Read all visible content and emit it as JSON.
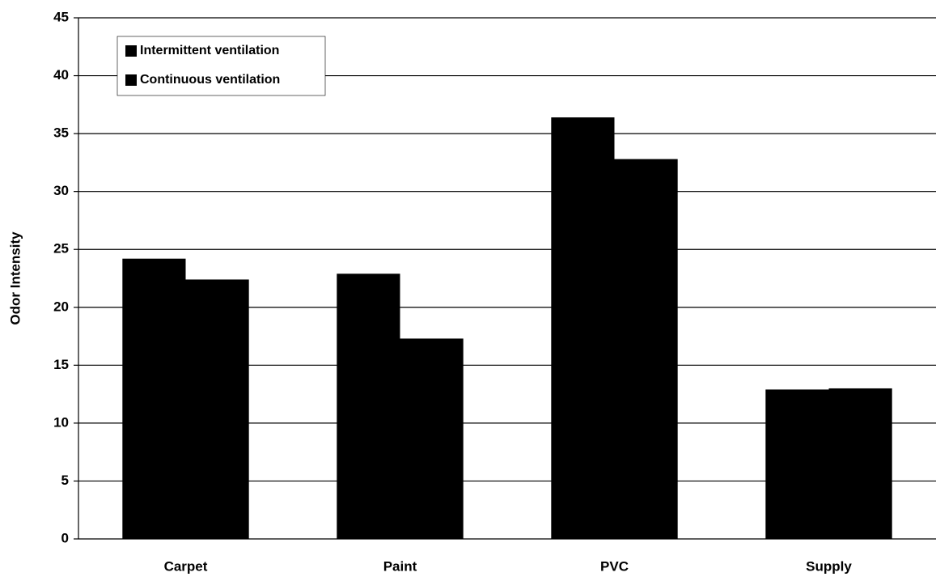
{
  "chart_data": {
    "type": "bar",
    "y_label": "Odor Intensity",
    "categories": [
      "Carpet",
      "Paint",
      "PVC",
      "Supply"
    ],
    "series": [
      {
        "name": "Intermittent ventilation",
        "color": "#000000",
        "values": [
          24.2,
          22.9,
          36.4,
          12.9
        ]
      },
      {
        "name": "Continuous ventilation",
        "color": "#000000",
        "values": [
          22.4,
          17.3,
          32.8,
          13.0
        ]
      }
    ],
    "ylim": [
      0,
      45
    ],
    "yticks": [
      0,
      5,
      10,
      15,
      20,
      25,
      30,
      35,
      40,
      45
    ],
    "grid": true,
    "legend": "upper left"
  }
}
